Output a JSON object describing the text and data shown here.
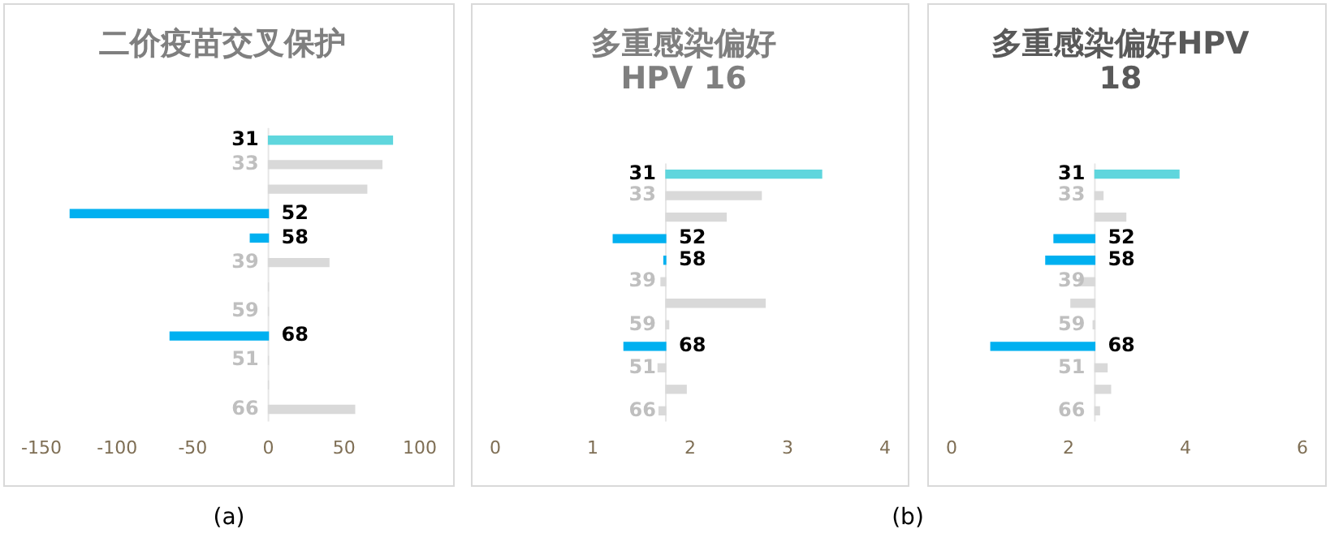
{
  "chart_data": [
    {
      "type": "bar",
      "orientation": "horizontal",
      "title": "二价疫苗交叉保护",
      "categories": [
        "31",
        "33",
        null,
        "52",
        "58",
        "39",
        null,
        "59",
        "68",
        "51",
        null,
        "66"
      ],
      "values": [
        82,
        75,
        65,
        -131,
        -12,
        40,
        0,
        0,
        -65,
        0,
        0,
        57
      ],
      "colors": [
        "#5fd6dd",
        "#d9d9d9",
        "#d9d9d9",
        "#00b0f0",
        "#00b0f0",
        "#d9d9d9",
        "#d9d9d9",
        "#d9d9d9",
        "#00b0f0",
        "#d9d9d9",
        "#d9d9d9",
        "#d9d9d9"
      ],
      "xlim": [
        -150,
        100
      ],
      "xticks": [
        -150,
        -100,
        -50,
        0,
        50,
        100
      ],
      "grid": false,
      "legend": false,
      "annotations": [
        "(a)"
      ]
    },
    {
      "type": "bar",
      "orientation": "horizontal",
      "title": "多重感染偏好\nHPV 16",
      "categories": [
        "31",
        "33",
        null,
        "52",
        "58",
        "39",
        null,
        "59",
        "68",
        "51",
        null,
        "66"
      ],
      "base": [
        1.75,
        1.75,
        1.75,
        1.75,
        1.75,
        1.75,
        1.75,
        1.75,
        1.75,
        1.75,
        1.75,
        1.75
      ],
      "values": [
        1.6,
        0.98,
        0.62,
        -0.54,
        -0.02,
        -0.05,
        1.02,
        0.03,
        -0.43,
        -0.08,
        0.21,
        -0.07
      ],
      "colors": [
        "#5fd6dd",
        "#d9d9d9",
        "#d9d9d9",
        "#00b0f0",
        "#00b0f0",
        "#d9d9d9",
        "#d9d9d9",
        "#d9d9d9",
        "#00b0f0",
        "#d9d9d9",
        "#d9d9d9",
        "#d9d9d9"
      ],
      "xlim": [
        0,
        4
      ],
      "xticks": [
        0,
        1,
        2,
        3,
        4
      ],
      "grid": false,
      "legend": false,
      "annotations": [
        "(b)"
      ]
    },
    {
      "type": "bar",
      "orientation": "horizontal",
      "title": "多重感染偏好HPV\n18",
      "categories": [
        "31",
        "33",
        null,
        "52",
        "58",
        "39",
        null,
        "59",
        "68",
        "51",
        null,
        "66"
      ],
      "base": [
        2.45,
        2.45,
        2.45,
        2.45,
        2.45,
        2.45,
        2.45,
        2.45,
        2.45,
        2.45,
        2.45,
        2.45
      ],
      "values": [
        1.44,
        0.14,
        0.53,
        -0.7,
        -0.84,
        -0.27,
        -0.41,
        -0.03,
        -1.78,
        0.21,
        0.27,
        0.08
      ],
      "colors": [
        "#5fd6dd",
        "#d9d9d9",
        "#d9d9d9",
        "#00b0f0",
        "#00b0f0",
        "#d9d9d9",
        "#d9d9d9",
        "#d9d9d9",
        "#00b0f0",
        "#d9d9d9",
        "#d9d9d9",
        "#d9d9d9"
      ],
      "xlim": [
        0,
        6
      ],
      "xticks": [
        0,
        2,
        4,
        6
      ],
      "grid": false,
      "legend": false
    }
  ]
}
